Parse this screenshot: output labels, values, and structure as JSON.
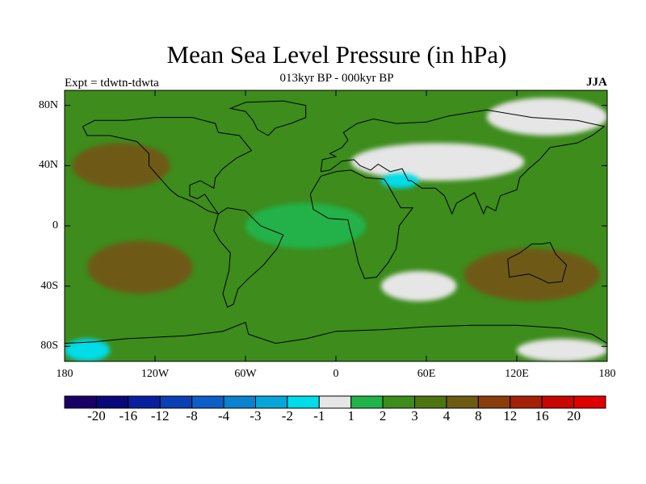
{
  "chart_data": {
    "type": "heatmap",
    "title": "Mean Sea Level Pressure (in hPa)",
    "subtitle": "013kyr BP - 000kyr BP",
    "experiment": "Expt = tdwtn-tdwta",
    "season": "JJA",
    "x_axis": {
      "range": [
        -180,
        180
      ],
      "ticks": [
        -180,
        -120,
        -60,
        0,
        60,
        120,
        180
      ],
      "tick_labels": [
        "180",
        "120W",
        "60W",
        "0",
        "60E",
        "120E",
        "180"
      ]
    },
    "y_axis": {
      "range": [
        -90,
        90
      ],
      "ticks": [
        80,
        40,
        0,
        -40,
        -80
      ],
      "tick_labels": [
        "80N",
        "40N",
        "0",
        "40S",
        "80S"
      ]
    },
    "colorbar": {
      "levels": [
        "-20",
        "-16",
        "-12",
        "-8",
        "-4",
        "-3",
        "-2",
        "-1",
        "1",
        "2",
        "3",
        "4",
        "8",
        "12",
        "16",
        "20"
      ],
      "colors": [
        "#1a0066",
        "#08087a",
        "#0a1fa0",
        "#0b3fb5",
        "#0d5fc7",
        "#0a82d0",
        "#07a6da",
        "#00dce8",
        "#e6e6e6",
        "#22b24a",
        "#3d8c1c",
        "#4e7512",
        "#6e5a12",
        "#8a3d0c",
        "#a62008",
        "#c80404",
        "#e00000"
      ]
    },
    "regions": [
      {
        "name": "base",
        "level": "2-3",
        "lon": [
          -180,
          180
        ],
        "lat": [
          -90,
          90
        ]
      },
      {
        "name": "north-pacific-high",
        "level": "3-4",
        "lon": [
          -175,
          -110
        ],
        "lat": [
          25,
          55
        ]
      },
      {
        "name": "south-pacific-high",
        "level": "3-4",
        "lon": [
          -165,
          -95
        ],
        "lat": [
          -45,
          -10
        ]
      },
      {
        "name": "southern-indian-ocean",
        "level": "3-4",
        "lon": [
          85,
          175
        ],
        "lat": [
          -50,
          -15
        ]
      },
      {
        "name": "eurasia-low",
        "level": "-1-1",
        "lon": [
          10,
          125
        ],
        "lat": [
          30,
          55
        ]
      },
      {
        "name": "arabia-tibet",
        "level": "-2--1",
        "lon": [
          30,
          55
        ],
        "lat": [
          25,
          35
        ]
      },
      {
        "name": "southern-ocean-low",
        "level": "-1-1",
        "lon": [
          30,
          80
        ],
        "lat": [
          -50,
          -30
        ]
      },
      {
        "name": "equatorial-atlantic",
        "level": "1-2",
        "lon": [
          -60,
          20
        ],
        "lat": [
          -15,
          15
        ]
      },
      {
        "name": "arctic-low",
        "level": "-1-1",
        "lon": [
          100,
          180
        ],
        "lat": [
          60,
          85
        ]
      },
      {
        "name": "antarctic-margin",
        "level": "-2--1",
        "lon": [
          -180,
          -150
        ],
        "lat": [
          -90,
          -75
        ]
      },
      {
        "name": "antarctic-east",
        "level": "-1-1",
        "lon": [
          120,
          180
        ],
        "lat": [
          -90,
          -75
        ]
      }
    ]
  }
}
